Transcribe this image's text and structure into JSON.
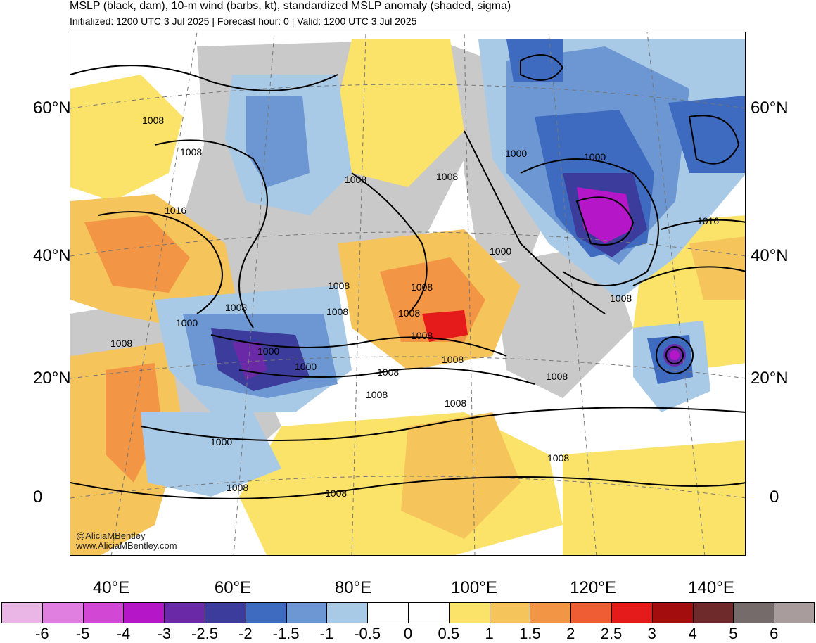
{
  "header": {
    "title": "MSLP (black, dam), 10-m wind (barbs, kt), standardized MSLP anomaly (shaded, sigma)",
    "subtitle": "Initialized: 1200 UTC 3 Jul 2025 | Forecast hour: 0 | Valid: 1200 UTC 3 Jul 2025"
  },
  "axes": {
    "lat_left": [
      "60°N",
      "40°N",
      "20°N",
      "0"
    ],
    "lat_right": [
      "60°N",
      "40°N",
      "20°N",
      "0"
    ],
    "lon": [
      "40°E",
      "60°E",
      "80°E",
      "100°E",
      "120°E",
      "140°E"
    ]
  },
  "isobar_labels": [
    "1008",
    "1008",
    "1016",
    "1008",
    "1008",
    "1000",
    "1008",
    "1000",
    "1000",
    "1000",
    "1008",
    "1008",
    "1008",
    "1008",
    "1008",
    "1000",
    "1000",
    "1008",
    "1008",
    "1008",
    "1008",
    "1008",
    "1008",
    "1000",
    "1016",
    "1008",
    "1008",
    "1008",
    "1008"
  ],
  "credits": {
    "handle": "@AliciaMBentley",
    "site": "www.AliciaMBentley.com"
  },
  "colorbar": {
    "ticks": [
      "-6",
      "-5",
      "-4",
      "-3",
      "-2.5",
      "-2",
      "-1.5",
      "-1",
      "-0.5",
      "0",
      "0.5",
      "1",
      "1.5",
      "2",
      "2.5",
      "3",
      "4",
      "5",
      "6"
    ],
    "colors": [
      "#e9b6e6",
      "#e17fe0",
      "#d247d4",
      "#b416c8",
      "#6a2aa8",
      "#3c3c9c",
      "#3e6bbf",
      "#6c97d2",
      "#a9cae7",
      "#ffffff",
      "#ffffff",
      "#fbe36a",
      "#f5c45a",
      "#f29545",
      "#ef5d34",
      "#e51a1a",
      "#a40d0d",
      "#6e2a2a",
      "#756b6b",
      "#a89c9c"
    ]
  }
}
